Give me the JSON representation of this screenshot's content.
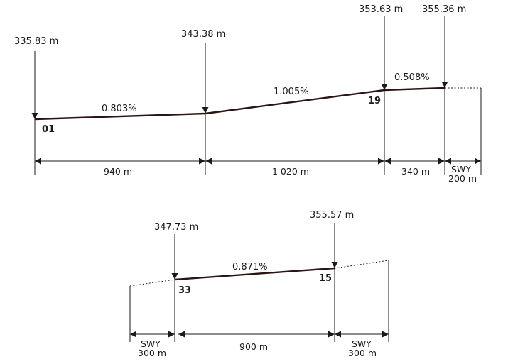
{
  "top_profile": {
    "elevations": {
      "e01": "335.83 m",
      "e_mid": "343.38 m",
      "e19": "353.63 m",
      "e_end": "355.36 m"
    },
    "slopes": {
      "s1": "0.803%",
      "s2": "1.005%",
      "s3": "0.508%"
    },
    "thresholds": {
      "left": "01",
      "right": "19"
    },
    "distances": {
      "d1": "940 m",
      "d2": "1 020 m",
      "d3": "340 m",
      "swy_label": "SWY",
      "swy_length": "200 m"
    }
  },
  "bottom_profile": {
    "elevations": {
      "e33": "347.73 m",
      "e15": "355.57 m"
    },
    "slope": "0.871%",
    "thresholds": {
      "left": "33",
      "right": "15"
    },
    "distances": {
      "main": "900 m",
      "swy_left_label": "SWY",
      "swy_left_length": "300 m",
      "swy_right_label": "SWY",
      "swy_right_length": "300 m"
    }
  }
}
